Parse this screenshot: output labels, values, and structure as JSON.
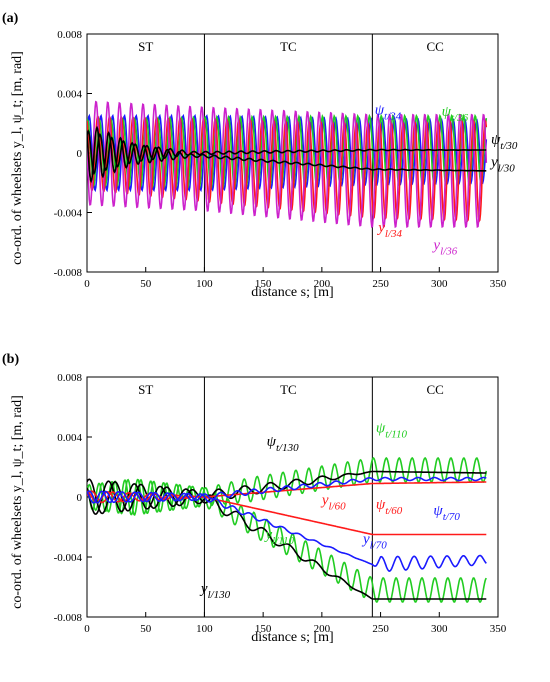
{
  "chart_data": [
    {
      "type": "line",
      "panel_label": "(a)",
      "xlabel": "distance s; [m]",
      "ylabel": "co-ord. of wheelsets y_l, ψ_t; [m, rad]",
      "xlim": [
        0,
        350
      ],
      "ylim": [
        -0.008,
        0.008
      ],
      "x_ticks": [
        "0",
        "50",
        "100",
        "150",
        "200",
        "250",
        "300",
        "350"
      ],
      "y_ticks": [
        "0.008",
        "0.004",
        "0",
        "-0.004",
        "-0.008"
      ],
      "sections": [
        {
          "label": "ST",
          "x_from": 0,
          "x_to": 100
        },
        {
          "label": "TC",
          "x_from": 100,
          "x_to": 243
        },
        {
          "label": "CC",
          "x_from": 243,
          "x_to": 350
        }
      ],
      "section_boundaries": [
        100,
        243
      ],
      "series": [
        {
          "name": "ψt/34",
          "color": "#1a1aff",
          "base": "ψ",
          "sub": "t/34",
          "wavelength": 10,
          "amp_points": [
            [
              0,
              0.0025
            ],
            [
              100,
              0.0025
            ],
            [
              243,
              0.0022
            ],
            [
              340,
              0.0021
            ]
          ],
          "mean_points": [
            [
              0,
              0
            ],
            [
              100,
              0
            ],
            [
              243,
              0.0001
            ],
            [
              340,
              0.0001
            ]
          ],
          "phase": 0.4
        },
        {
          "name": "ψt/36",
          "color": "#22cc22",
          "base": "ψ",
          "sub": "t/36",
          "wavelength": 10,
          "amp_points": [
            [
              0,
              0.0022
            ],
            [
              100,
              0.0024
            ],
            [
              243,
              0.0023
            ],
            [
              340,
              0.0023
            ]
          ],
          "mean_points": [
            [
              0,
              0
            ],
            [
              100,
              0
            ],
            [
              243,
              0.0002
            ],
            [
              340,
              0.0002
            ]
          ],
          "phase": 1.2
        },
        {
          "name": "yl/34",
          "color": "#ff1a1a",
          "base": "y",
          "sub": "l/34",
          "wavelength": 10,
          "amp_points": [
            [
              0,
              0.0025
            ],
            [
              100,
              0.0028
            ],
            [
              243,
              0.0032
            ],
            [
              340,
              0.0034
            ]
          ],
          "mean_points": [
            [
              0,
              0
            ],
            [
              100,
              -0.0005
            ],
            [
              243,
              -0.0012
            ],
            [
              340,
              -0.0012
            ]
          ],
          "phase": 2.1
        },
        {
          "name": "yl/36",
          "color": "#cc22cc",
          "base": "y",
          "sub": "l/36",
          "wavelength": 10,
          "amp_points": [
            [
              0,
              0.0035
            ],
            [
              100,
              0.0035
            ],
            [
              243,
              0.0038
            ],
            [
              340,
              0.0038
            ]
          ],
          "mean_points": [
            [
              0,
              0
            ],
            [
              100,
              -0.0004
            ],
            [
              243,
              -0.0012
            ],
            [
              340,
              -0.0012
            ]
          ],
          "phase": 3.0
        },
        {
          "name": "ψt/30",
          "color": "#000000",
          "base": "ψ",
          "sub": "t/30",
          "wavelength": 10,
          "amp_points": [
            [
              0,
              0.0015
            ],
            [
              40,
              0.0006
            ],
            [
              90,
              0.0001
            ],
            [
              340,
              0
            ]
          ],
          "mean_points": [
            [
              0,
              0
            ],
            [
              100,
              0
            ],
            [
              243,
              0.0002
            ],
            [
              340,
              0.0002
            ]
          ],
          "phase": 0.9
        },
        {
          "name": "yl/30",
          "color": "#000000",
          "base": "y",
          "sub": "l/30",
          "wavelength": 10,
          "amp_points": [
            [
              0,
              0.002
            ],
            [
              40,
              0.0007
            ],
            [
              90,
              0.0001
            ],
            [
              340,
              0
            ]
          ],
          "mean_points": [
            [
              0,
              0
            ],
            [
              100,
              -0.0002
            ],
            [
              243,
              -0.0011
            ],
            [
              340,
              -0.0012
            ]
          ],
          "phase": 2.5
        }
      ],
      "annotations": [
        {
          "base": "ψ",
          "sub": "t/34",
          "color": "#1a1aff",
          "x": 245,
          "y": 0.0026
        },
        {
          "base": "ψ",
          "sub": "t/36",
          "color": "#22cc22",
          "x": 302,
          "y": 0.0025
        },
        {
          "base": "ψ",
          "sub": "t/30",
          "color": "#000000",
          "x": 344,
          "y": 0.0006
        },
        {
          "base": "y",
          "sub": "l/30",
          "color": "#000000",
          "x": 344,
          "y": -0.0009
        },
        {
          "base": "y",
          "sub": "l/34",
          "color": "#ff1a1a",
          "x": 248,
          "y": -0.0053
        },
        {
          "base": "y",
          "sub": "l/36",
          "color": "#cc22cc",
          "x": 295,
          "y": -0.0065
        }
      ]
    },
    {
      "type": "line",
      "panel_label": "(b)",
      "xlabel": "distance s; [m]",
      "ylabel": "co-ord. of wheelsets y_l, ψ_t; [m, rad]",
      "xlim": [
        0,
        350
      ],
      "ylim": [
        -0.008,
        0.008
      ],
      "x_ticks": [
        "0",
        "50",
        "100",
        "150",
        "200",
        "250",
        "300",
        "350"
      ],
      "y_ticks": [
        "0.008",
        "0.004",
        "0",
        "-0.004",
        "-0.008"
      ],
      "sections": [
        {
          "label": "ST",
          "x_from": 0,
          "x_to": 100
        },
        {
          "label": "TC",
          "x_from": 100,
          "x_to": 243
        },
        {
          "label": "CC",
          "x_from": 243,
          "x_to": 350
        }
      ],
      "section_boundaries": [
        100,
        243
      ],
      "series": [
        {
          "name": "ψt/110",
          "color": "#22cc22",
          "base": "ψ",
          "sub": "t/110",
          "wavelength": 11,
          "amp_points": [
            [
              0,
              0.0008
            ],
            [
              40,
              0.0012
            ],
            [
              100,
              0.0006
            ],
            [
              140,
              0.0008
            ],
            [
              243,
              0.0008
            ],
            [
              340,
              0.0008
            ]
          ],
          "mean_points": [
            [
              0,
              0
            ],
            [
              100,
              0
            ],
            [
              243,
              0.0018
            ],
            [
              340,
              0.0018
            ]
          ],
          "phase": 0.5
        },
        {
          "name": "yl/110",
          "color": "#22cc22",
          "base": "y",
          "sub": "l/110",
          "wavelength": 11,
          "amp_points": [
            [
              0,
              0.0008
            ],
            [
              40,
              0.0012
            ],
            [
              100,
              0.0006
            ],
            [
              140,
              0.0008
            ],
            [
              243,
              0.0008
            ],
            [
              340,
              0.0008
            ]
          ],
          "mean_points": [
            [
              0,
              0
            ],
            [
              100,
              0
            ],
            [
              243,
              -0.0062
            ],
            [
              340,
              -0.0062
            ]
          ],
          "phase": 2.0
        },
        {
          "name": "ψt/130",
          "color": "#000000",
          "base": "ψ",
          "sub": "t/130",
          "wavelength": 22,
          "amp_points": [
            [
              0,
              0.0012
            ],
            [
              50,
              0.0008
            ],
            [
              100,
              0.0004
            ],
            [
              200,
              0.0002
            ],
            [
              243,
              0
            ],
            [
              340,
              0
            ]
          ],
          "mean_points": [
            [
              0,
              0
            ],
            [
              100,
              0
            ],
            [
              243,
              0.0017
            ],
            [
              340,
              0.0016
            ]
          ],
          "phase": 1.0
        },
        {
          "name": "yl/130",
          "color": "#000000",
          "base": "y",
          "sub": "l/130",
          "wavelength": 22,
          "amp_points": [
            [
              0,
              0.0012
            ],
            [
              50,
              0.0008
            ],
            [
              100,
              0.0004
            ],
            [
              200,
              0.0002
            ],
            [
              243,
              0
            ],
            [
              340,
              0
            ]
          ],
          "mean_points": [
            [
              0,
              0
            ],
            [
              100,
              0
            ],
            [
              243,
              -0.0068
            ],
            [
              340,
              -0.0068
            ]
          ],
          "phase": 2.6
        },
        {
          "name": "ψt/60",
          "color": "#ff1a1a",
          "base": "ψ",
          "sub": "t/60",
          "wavelength": 18,
          "amp_points": [
            [
              0,
              0.0004
            ],
            [
              60,
              0.0002
            ],
            [
              100,
              0
            ],
            [
              340,
              0
            ]
          ],
          "mean_points": [
            [
              0,
              0
            ],
            [
              100,
              0
            ],
            [
              243,
              0.0009
            ],
            [
              340,
              0.001
            ]
          ],
          "phase": 0.2
        },
        {
          "name": "yl/60",
          "color": "#ff1a1a",
          "base": "y",
          "sub": "l/60",
          "wavelength": 18,
          "amp_points": [
            [
              0,
              0.0004
            ],
            [
              60,
              0.0002
            ],
            [
              100,
              0
            ],
            [
              340,
              0
            ]
          ],
          "mean_points": [
            [
              0,
              0
            ],
            [
              100,
              0
            ],
            [
              243,
              -0.0025
            ],
            [
              340,
              -0.0025
            ]
          ],
          "phase": 1.7
        },
        {
          "name": "ψt/70",
          "color": "#1a1aff",
          "base": "ψ",
          "sub": "t/70",
          "wavelength": 14,
          "amp_points": [
            [
              0,
              0.0004
            ],
            [
              100,
              0.0002
            ],
            [
              243,
              0.0001
            ],
            [
              340,
              0.0001
            ]
          ],
          "mean_points": [
            [
              0,
              0
            ],
            [
              100,
              0
            ],
            [
              243,
              0.0012
            ],
            [
              340,
              0.0012
            ]
          ],
          "phase": 0.7
        },
        {
          "name": "yl/70",
          "color": "#1a1aff",
          "base": "y",
          "sub": "l/70",
          "wavelength": 14,
          "amp_points": [
            [
              0,
              0.0004
            ],
            [
              100,
              0.0002
            ],
            [
              243,
              0
            ],
            [
              250,
              0.0005
            ],
            [
              340,
              0.0003
            ]
          ],
          "mean_points": [
            [
              0,
              0
            ],
            [
              100,
              0
            ],
            [
              243,
              -0.0045
            ],
            [
              340,
              -0.0042
            ]
          ],
          "phase": 2.2
        }
      ],
      "annotations": [
        {
          "base": "ψ",
          "sub": "t/130",
          "color": "#000000",
          "x": 153,
          "y": 0.0034
        },
        {
          "base": "ψ",
          "sub": "t/110",
          "color": "#22cc22",
          "x": 246,
          "y": 0.0043
        },
        {
          "base": "y",
          "sub": "l/60",
          "color": "#ff1a1a",
          "x": 200,
          "y": -0.0005
        },
        {
          "base": "ψ",
          "sub": "t/60",
          "color": "#ff1a1a",
          "x": 246,
          "y": -0.0008
        },
        {
          "base": "ψ",
          "sub": "t/70",
          "color": "#1a1aff",
          "x": 295,
          "y": -0.0012
        },
        {
          "base": "y",
          "sub": "l/110",
          "color": "#22cc22",
          "x": 152,
          "y": -0.0028
        },
        {
          "base": "y",
          "sub": "l/70",
          "color": "#1a1aff",
          "x": 235,
          "y": -0.0031
        },
        {
          "base": "y",
          "sub": "l/130",
          "color": "#000000",
          "x": 97,
          "y": -0.0064
        }
      ]
    }
  ]
}
